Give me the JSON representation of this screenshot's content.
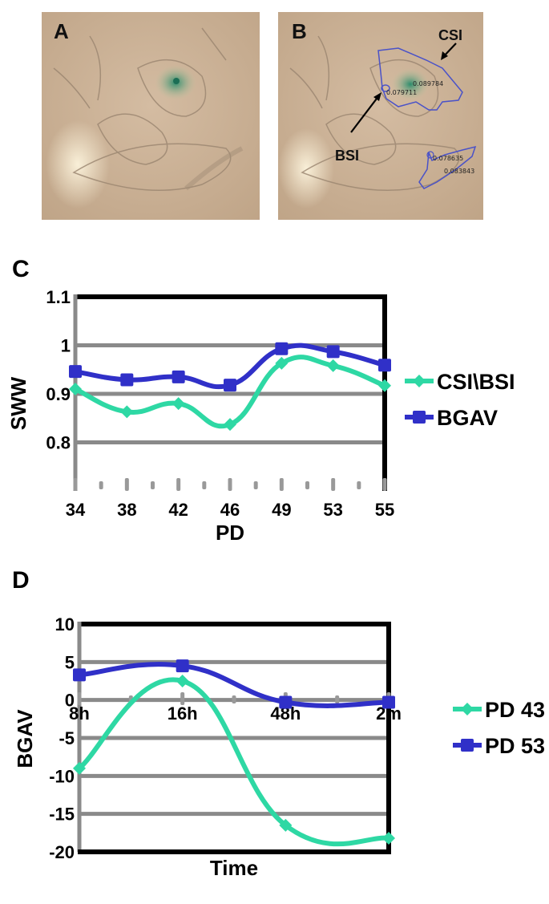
{
  "panels": {
    "a": {
      "letter": "A"
    },
    "b": {
      "letter": "B",
      "csi_label": "CSI",
      "bsi_label": "BSI",
      "values": [
        "0.089784",
        "0.079711",
        "0.078635",
        "0.083843"
      ]
    },
    "c": {
      "letter": "C"
    },
    "d": {
      "letter": "D"
    }
  },
  "colors": {
    "teal": "#2ed8a4",
    "blue": "#3030c8",
    "grid": "#8a8a8a",
    "frame": "#000000",
    "photo": "#c9b095",
    "roi": "#4a52c8"
  },
  "chart_data": [
    {
      "id": "C",
      "type": "line",
      "title": "",
      "xlabel": "PD",
      "ylabel": "SWW",
      "categories": [
        "34",
        "38",
        "42",
        "46",
        "49",
        "53",
        "55"
      ],
      "y_tick_labels": [
        "1.1",
        "1",
        "0.9",
        "0.8"
      ],
      "y_ticks": [
        1.1,
        1.0,
        0.9,
        0.8
      ],
      "ylim": [
        0.7,
        1.1
      ],
      "grid": true,
      "legend_position": "right",
      "series": [
        {
          "name": "CSI\\BSI",
          "color": "#2ed8a4",
          "marker": "diamond",
          "values": [
            0.91,
            0.863,
            0.88,
            0.837,
            0.963,
            0.958,
            0.917
          ]
        },
        {
          "name": "BGAV",
          "color": "#3030c8",
          "marker": "square",
          "values": [
            0.946,
            0.929,
            0.935,
            0.918,
            0.993,
            0.987,
            0.959
          ]
        }
      ]
    },
    {
      "id": "D",
      "type": "line",
      "title": "",
      "xlabel": "Time",
      "ylabel": "BGAV",
      "categories": [
        "8h",
        "16h",
        "48h",
        "2m"
      ],
      "y_tick_labels": [
        "10",
        "5",
        "0",
        "-5",
        "-10",
        "-15",
        "-20"
      ],
      "y_ticks": [
        10,
        5,
        0,
        -5,
        -10,
        -15,
        -20
      ],
      "ylim": [
        -20,
        10
      ],
      "grid": true,
      "legend_position": "right",
      "series": [
        {
          "name": "PD 43",
          "color": "#2ed8a4",
          "marker": "diamond",
          "values": [
            -9.0,
            2.5,
            -16.5,
            -18.2
          ]
        },
        {
          "name": "PD 53",
          "color": "#3030c8",
          "marker": "square",
          "values": [
            3.3,
            4.5,
            -0.3,
            -0.3
          ]
        }
      ]
    }
  ]
}
